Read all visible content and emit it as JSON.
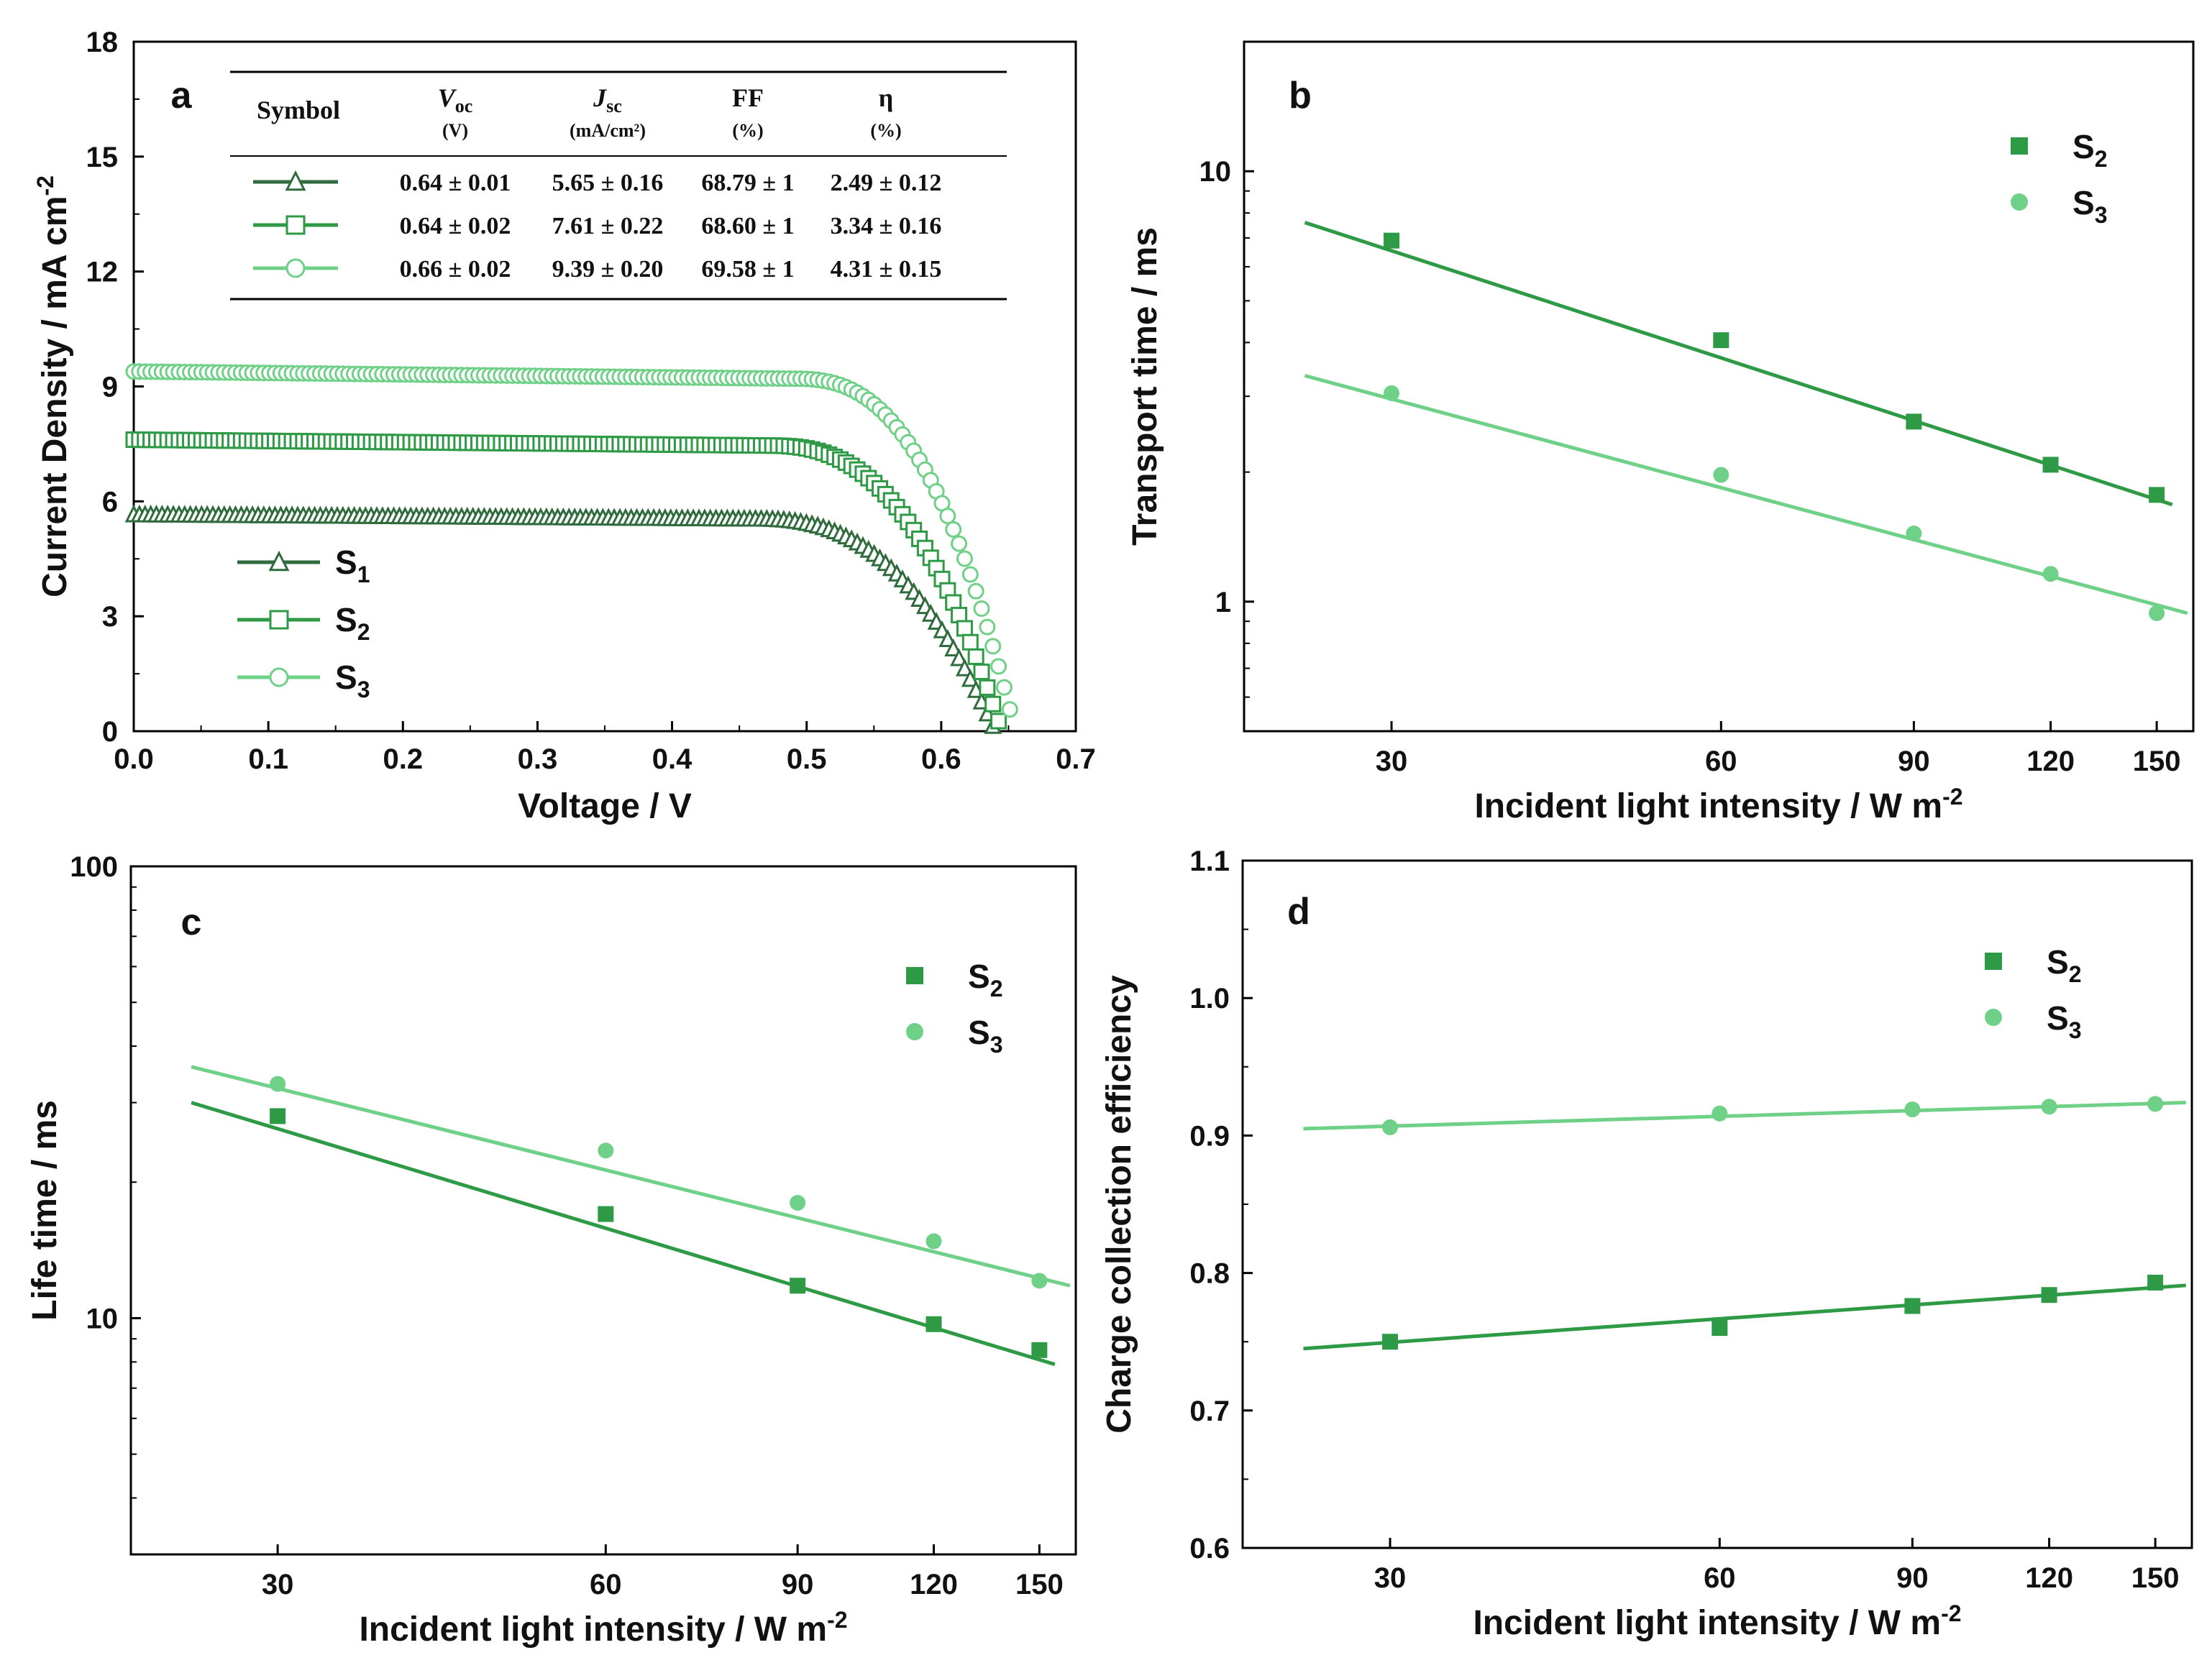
{
  "colors": {
    "S1": "#2f6b3d",
    "S2": "#2e9a46",
    "S3": "#6fd087",
    "axis": "#000000"
  },
  "chart_data": [
    {
      "id": "a",
      "panel_label": "a",
      "type": "line",
      "xlabel": "Voltage / V",
      "ylabel": "Current Density / mA cm",
      "ylabel_sup": "-2",
      "xlim": [
        0,
        0.7
      ],
      "ylim": [
        0,
        18
      ],
      "xticks": [
        "0.0",
        "0.1",
        "0.2",
        "0.3",
        "0.4",
        "0.5",
        "0.6",
        "0.7"
      ],
      "yticks": [
        "0",
        "3",
        "6",
        "9",
        "12",
        "15",
        "18"
      ],
      "series": [
        {
          "name": "S",
          "sub": "1",
          "color_key": "S1",
          "marker": "triangle",
          "jsc": 5.65,
          "voc": 0.64,
          "knee": 0.46
        },
        {
          "name": "S",
          "sub": "2",
          "color_key": "S2",
          "marker": "square",
          "jsc": 7.61,
          "voc": 0.645,
          "knee": 0.47
        },
        {
          "name": "S",
          "sub": "3",
          "color_key": "S3",
          "marker": "circle",
          "jsc": 9.39,
          "voc": 0.655,
          "knee": 0.49
        }
      ],
      "table": {
        "headers": [
          {
            "main": "Symbol",
            "unit": ""
          },
          {
            "main": "V",
            "sub": "oc",
            "unit": "(V)"
          },
          {
            "main": "J",
            "sub": "sc",
            "unit": "(mA/cm²)"
          },
          {
            "main": "FF",
            "unit": "(%)"
          },
          {
            "main": "η",
            "unit": "(%)"
          }
        ],
        "rows": [
          {
            "marker": "triangle",
            "color_key": "S1",
            "cells": [
              "0.64 ± 0.01",
              "5.65 ± 0.16",
              "68.79 ± 1",
              "2.49 ± 0.12"
            ]
          },
          {
            "marker": "square",
            "color_key": "S2",
            "cells": [
              "0.64 ± 0.02",
              "7.61 ± 0.22",
              "68.60 ± 1",
              "3.34 ± 0.16"
            ]
          },
          {
            "marker": "circle",
            "color_key": "S3",
            "cells": [
              "0.66 ± 0.02",
              "9.39 ± 0.20",
              "69.58 ± 1",
              "4.31 ± 0.15"
            ]
          }
        ]
      }
    },
    {
      "id": "b",
      "panel_label": "b",
      "type": "scatter",
      "scale": "log-log",
      "xlabel": "Incident light intensity / W m",
      "xlabel_sup": "-2",
      "ylabel": "Transport time / ms",
      "xlim": [
        22,
        162
      ],
      "ylim": [
        0.5,
        20
      ],
      "xticks": [
        30,
        60,
        90,
        120,
        150
      ],
      "yticks": [
        1,
        10
      ],
      "x": [
        30,
        60,
        90,
        120,
        150
      ],
      "series": [
        {
          "name": "S",
          "sub": "2",
          "color_key": "S2",
          "marker": "square",
          "values": [
            6.9,
            4.05,
            2.62,
            2.08,
            1.77
          ],
          "fit": [
            [
              25,
              7.6
            ],
            [
              155,
              1.68
            ]
          ]
        },
        {
          "name": "S",
          "sub": "3",
          "color_key": "S3",
          "marker": "circle",
          "values": [
            3.05,
            1.97,
            1.44,
            1.16,
            0.94
          ],
          "fit": [
            [
              25,
              3.35
            ],
            [
              160,
              0.94
            ]
          ]
        }
      ]
    },
    {
      "id": "c",
      "panel_label": "c",
      "type": "scatter",
      "scale": "log-log",
      "xlabel": "Incident light intensity / W m",
      "xlabel_sup": "-2",
      "ylabel": "Life time / ms",
      "xlim": [
        22,
        162
      ],
      "ylim": [
        3,
        100
      ],
      "xticks": [
        30,
        60,
        90,
        120,
        150
      ],
      "yticks": [
        10,
        100
      ],
      "x": [
        30,
        60,
        90,
        120,
        150
      ],
      "series": [
        {
          "name": "S",
          "sub": "2",
          "color_key": "S2",
          "marker": "square",
          "values": [
            28,
            17,
            11.8,
            9.7,
            8.5
          ],
          "fit": [
            [
              25,
              30
            ],
            [
              155,
              7.9
            ]
          ]
        },
        {
          "name": "S",
          "sub": "3",
          "color_key": "S3",
          "marker": "circle",
          "values": [
            33,
            23.5,
            18,
            14.8,
            12.1
          ],
          "fit": [
            [
              25,
              36
            ],
            [
              160,
              11.8
            ]
          ]
        }
      ]
    },
    {
      "id": "d",
      "panel_label": "d",
      "type": "scatter",
      "scale": "log-linear",
      "xlabel": "Incident light intensity / W m",
      "xlabel_sup": "-2",
      "ylabel": "Charge collection efficiency",
      "xlim": [
        22,
        162
      ],
      "ylim": [
        0.6,
        1.1
      ],
      "xticks": [
        30,
        60,
        90,
        120,
        150
      ],
      "yticks": [
        "0.6",
        "0.7",
        "0.8",
        "0.9",
        "1.0",
        "1.1"
      ],
      "x": [
        30,
        60,
        90,
        120,
        150
      ],
      "series": [
        {
          "name": "S",
          "sub": "2",
          "color_key": "S2",
          "marker": "square",
          "values": [
            0.75,
            0.76,
            0.776,
            0.784,
            0.793
          ],
          "fit": [
            [
              25,
              0.745
            ],
            [
              160,
              0.791
            ]
          ]
        },
        {
          "name": "S",
          "sub": "3",
          "color_key": "S3",
          "marker": "circle",
          "values": [
            0.906,
            0.916,
            0.919,
            0.921,
            0.923
          ],
          "fit": [
            [
              25,
              0.905
            ],
            [
              160,
              0.924
            ]
          ]
        }
      ]
    }
  ]
}
